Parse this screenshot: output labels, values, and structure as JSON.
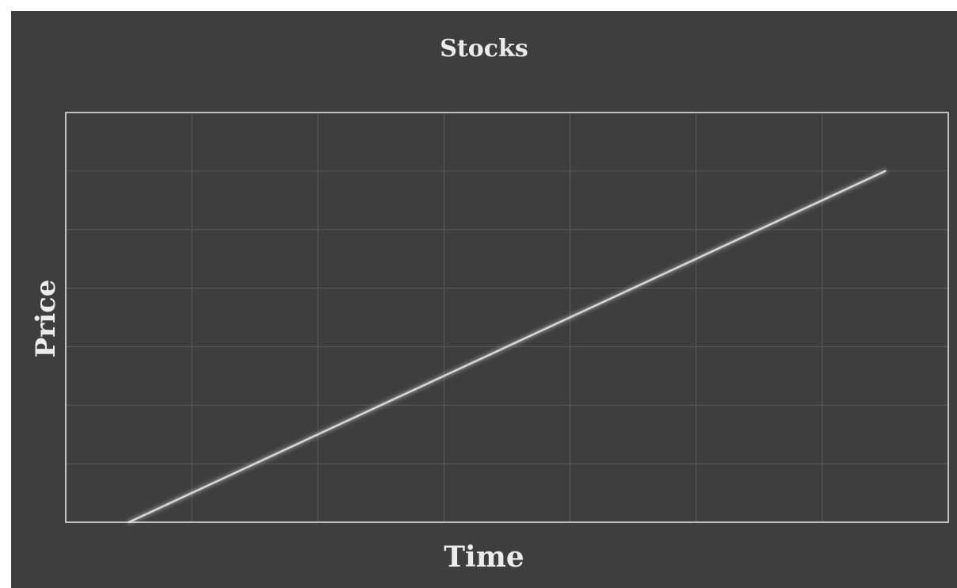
{
  "chart_data": {
    "type": "line",
    "title": "Stocks",
    "xlabel": "Time",
    "ylabel": "Price",
    "grid": true,
    "xlim": [
      0,
      7
    ],
    "ylim": [
      0,
      7
    ],
    "series": [
      {
        "x": [
          0.5,
          6.5
        ],
        "y": [
          0,
          6
        ],
        "color": "#d8d8d8"
      }
    ],
    "colors": {
      "background": "#3e3e3e",
      "plot_border": "#e8e8e8",
      "grid": "#5a5a5a",
      "line": "#d8d8d8",
      "text": "#ececec"
    }
  }
}
